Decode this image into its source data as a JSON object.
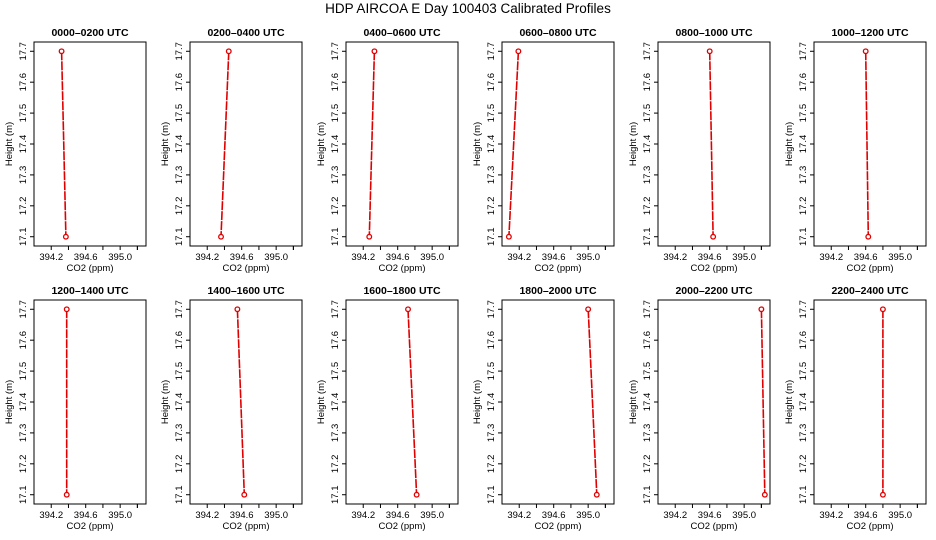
{
  "page": {
    "title": "HDP AIRCOA E  Day 100403  Calibrated Profiles"
  },
  "chart_data": [
    {
      "type": "line",
      "title": "0000–0200 UTC",
      "xlabel": "CO2 (ppm)",
      "ylabel": "Height (m)",
      "xlim": [
        394.0,
        395.3
      ],
      "ylim": [
        17.07,
        17.73
      ],
      "x_ticks": [
        "394.2",
        "394.6",
        "395.0"
      ],
      "y_ticks": [
        "17.1",
        "17.2",
        "17.3",
        "17.4",
        "17.5",
        "17.6",
        "17.7"
      ],
      "points": [
        {
          "x": 394.32,
          "y": 17.7
        },
        {
          "x": 394.37,
          "y": 17.1
        }
      ],
      "line_color": "#e00000"
    },
    {
      "type": "line",
      "title": "0200–0400 UTC",
      "xlabel": "CO2 (ppm)",
      "ylabel": "Height (m)",
      "xlim": [
        394.0,
        395.3
      ],
      "ylim": [
        17.07,
        17.73
      ],
      "x_ticks": [
        "394.2",
        "394.6",
        "395.0"
      ],
      "y_ticks": [
        "17.1",
        "17.2",
        "17.3",
        "17.4",
        "17.5",
        "17.6",
        "17.7"
      ],
      "points": [
        {
          "x": 394.45,
          "y": 17.7
        },
        {
          "x": 394.36,
          "y": 17.1
        }
      ],
      "line_color": "#e00000"
    },
    {
      "type": "line",
      "title": "0400–0600 UTC",
      "xlabel": "CO2 (ppm)",
      "ylabel": "Height (m)",
      "xlim": [
        394.0,
        395.3
      ],
      "ylim": [
        17.07,
        17.73
      ],
      "x_ticks": [
        "394.2",
        "394.6",
        "395.0"
      ],
      "y_ticks": [
        "17.1",
        "17.2",
        "17.3",
        "17.4",
        "17.5",
        "17.6",
        "17.7"
      ],
      "points": [
        {
          "x": 394.33,
          "y": 17.7
        },
        {
          "x": 394.27,
          "y": 17.1
        }
      ],
      "line_color": "#e00000"
    },
    {
      "type": "line",
      "title": "0600–0800 UTC",
      "xlabel": "CO2 (ppm)",
      "ylabel": "Height (m)",
      "xlim": [
        394.0,
        395.3
      ],
      "ylim": [
        17.07,
        17.73
      ],
      "x_ticks": [
        "394.2",
        "394.6",
        "395.0"
      ],
      "y_ticks": [
        "17.1",
        "17.2",
        "17.3",
        "17.4",
        "17.5",
        "17.6",
        "17.7"
      ],
      "points": [
        {
          "x": 394.19,
          "y": 17.7
        },
        {
          "x": 394.08,
          "y": 17.1
        }
      ],
      "line_color": "#e00000"
    },
    {
      "type": "line",
      "title": "0800–1000 UTC",
      "xlabel": "CO2 (ppm)",
      "ylabel": "Height (m)",
      "xlim": [
        394.0,
        395.3
      ],
      "ylim": [
        17.07,
        17.73
      ],
      "x_ticks": [
        "394.2",
        "394.6",
        "395.0"
      ],
      "y_ticks": [
        "17.1",
        "17.2",
        "17.3",
        "17.4",
        "17.5",
        "17.6",
        "17.7"
      ],
      "points": [
        {
          "x": 394.6,
          "y": 17.7
        },
        {
          "x": 394.64,
          "y": 17.1
        }
      ],
      "line_color": "#e00000"
    },
    {
      "type": "line",
      "title": "1000–1200 UTC",
      "xlabel": "CO2 (ppm)",
      "ylabel": "Height (m)",
      "xlim": [
        394.0,
        395.3
      ],
      "ylim": [
        17.07,
        17.73
      ],
      "x_ticks": [
        "394.2",
        "394.6",
        "395.0"
      ],
      "y_ticks": [
        "17.1",
        "17.2",
        "17.3",
        "17.4",
        "17.5",
        "17.6",
        "17.7"
      ],
      "points": [
        {
          "x": 394.6,
          "y": 17.7
        },
        {
          "x": 394.63,
          "y": 17.1
        }
      ],
      "line_color": "#e00000"
    },
    {
      "type": "line",
      "title": "1200–1400 UTC",
      "xlabel": "CO2 (ppm)",
      "ylabel": "Height (m)",
      "xlim": [
        394.0,
        395.3
      ],
      "ylim": [
        17.07,
        17.73
      ],
      "x_ticks": [
        "394.2",
        "394.6",
        "395.0"
      ],
      "y_ticks": [
        "17.1",
        "17.2",
        "17.3",
        "17.4",
        "17.5",
        "17.6",
        "17.7"
      ],
      "points": [
        {
          "x": 394.38,
          "y": 17.7
        },
        {
          "x": 394.38,
          "y": 17.1
        }
      ],
      "line_color": "#e00000"
    },
    {
      "type": "line",
      "title": "1400–1600 UTC",
      "xlabel": "CO2 (ppm)",
      "ylabel": "Height (m)",
      "xlim": [
        394.0,
        395.3
      ],
      "ylim": [
        17.07,
        17.73
      ],
      "x_ticks": [
        "394.2",
        "394.6",
        "395.0"
      ],
      "y_ticks": [
        "17.1",
        "17.2",
        "17.3",
        "17.4",
        "17.5",
        "17.6",
        "17.7"
      ],
      "points": [
        {
          "x": 394.55,
          "y": 17.7
        },
        {
          "x": 394.63,
          "y": 17.1
        }
      ],
      "line_color": "#e00000"
    },
    {
      "type": "line",
      "title": "1600–1800 UTC",
      "xlabel": "CO2 (ppm)",
      "ylabel": "Height (m)",
      "xlim": [
        394.0,
        395.3
      ],
      "ylim": [
        17.07,
        17.73
      ],
      "x_ticks": [
        "394.2",
        "394.6",
        "395.0"
      ],
      "y_ticks": [
        "17.1",
        "17.2",
        "17.3",
        "17.4",
        "17.5",
        "17.6",
        "17.7"
      ],
      "points": [
        {
          "x": 394.72,
          "y": 17.7
        },
        {
          "x": 394.82,
          "y": 17.1
        }
      ],
      "line_color": "#e00000"
    },
    {
      "type": "line",
      "title": "1800–2000 UTC",
      "xlabel": "CO2 (ppm)",
      "ylabel": "Height (m)",
      "xlim": [
        394.0,
        395.3
      ],
      "ylim": [
        17.07,
        17.73
      ],
      "x_ticks": [
        "394.2",
        "394.6",
        "395.0"
      ],
      "y_ticks": [
        "17.1",
        "17.2",
        "17.3",
        "17.4",
        "17.5",
        "17.6",
        "17.7"
      ],
      "points": [
        {
          "x": 395.0,
          "y": 17.7
        },
        {
          "x": 395.1,
          "y": 17.1
        }
      ],
      "line_color": "#e00000"
    },
    {
      "type": "line",
      "title": "2000–2200 UTC",
      "xlabel": "CO2 (ppm)",
      "ylabel": "Height (m)",
      "xlim": [
        394.0,
        395.3
      ],
      "ylim": [
        17.07,
        17.73
      ],
      "x_ticks": [
        "394.2",
        "394.6",
        "395.0"
      ],
      "y_ticks": [
        "17.1",
        "17.2",
        "17.3",
        "17.4",
        "17.5",
        "17.6",
        "17.7"
      ],
      "points": [
        {
          "x": 395.2,
          "y": 17.7
        },
        {
          "x": 395.24,
          "y": 17.1
        }
      ],
      "line_color": "#e00000"
    },
    {
      "type": "line",
      "title": "2200–2400 UTC",
      "xlabel": "CO2 (ppm)",
      "ylabel": "Height (m)",
      "xlim": [
        394.0,
        395.3
      ],
      "ylim": [
        17.07,
        17.73
      ],
      "x_ticks": [
        "394.2",
        "394.6",
        "395.0"
      ],
      "y_ticks": [
        "17.1",
        "17.2",
        "17.3",
        "17.4",
        "17.5",
        "17.6",
        "17.7"
      ],
      "points": [
        {
          "x": 394.8,
          "y": 17.7
        },
        {
          "x": 394.8,
          "y": 17.1
        }
      ],
      "line_color": "#e00000"
    }
  ]
}
